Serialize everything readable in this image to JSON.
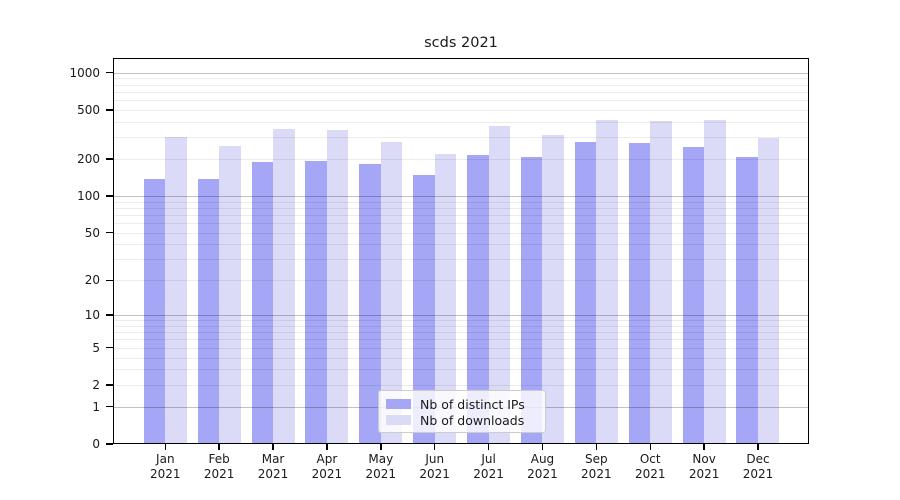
{
  "title": "scds 2021",
  "chart_data": {
    "type": "bar",
    "title": "scds 2021",
    "y_scale": "log(1+x)",
    "grid": true,
    "legend_position": "lower center",
    "categories": [
      "Jan",
      "Feb",
      "Mar",
      "Apr",
      "May",
      "Jun",
      "Jul",
      "Aug",
      "Sep",
      "Oct",
      "Nov",
      "Dec"
    ],
    "category_year": "2021",
    "series": [
      {
        "name": "Nb of distinct IPs",
        "color": "#a6a6f6",
        "values": [
          138,
          138,
          190,
          192,
          182,
          149,
          215,
          206,
          273,
          268,
          252,
          209
        ]
      },
      {
        "name": "Nb of downloads",
        "color": "#dbdbf7",
        "values": [
          300,
          254,
          352,
          346,
          276,
          218,
          370,
          315,
          417,
          407,
          412,
          296
        ]
      }
    ],
    "y_ticks": [
      1000,
      500,
      200,
      100,
      50,
      20,
      10,
      5,
      2,
      1,
      0
    ],
    "ylim": [
      0,
      1300
    ],
    "colors": {
      "axis": "#000000",
      "major_grid": "#c2c2c2",
      "minor_grid": "#ececec",
      "legend_border": "#cccccc"
    }
  }
}
